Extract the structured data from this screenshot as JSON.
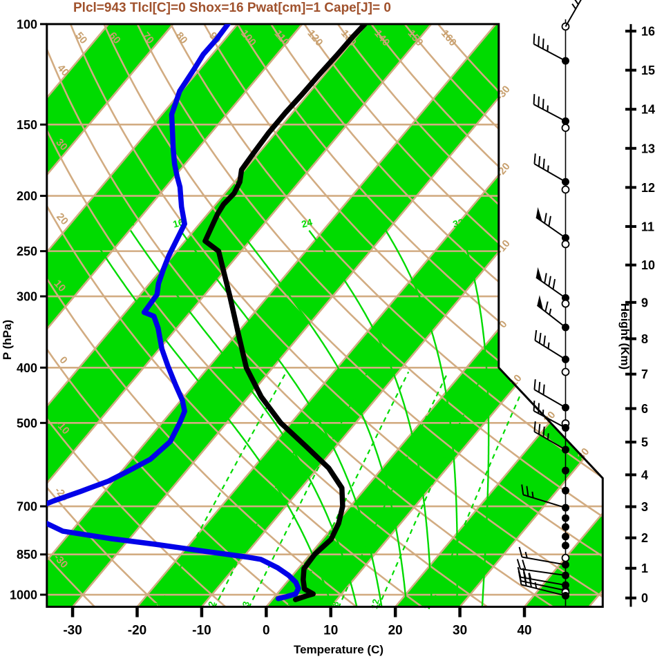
{
  "title": {
    "text": "Plcl=943 Tlcl[C]=0 Shox=16 Pwat[cm]=1 Cape[J]= 0"
  },
  "colors": {
    "title": "#A0522D",
    "tan_line": "#D2AC82",
    "tan_label": "#C8A06E",
    "green": "#00DB00",
    "temperature_curve": "#000000",
    "dewpoint_curve": "#0202E8",
    "axis": "#000000"
  },
  "axes": {
    "pressure": {
      "label": "P (hPa)",
      "ticks": [
        100,
        150,
        200,
        250,
        300,
        400,
        500,
        700,
        850,
        1000
      ]
    },
    "temperature": {
      "label": "Temperature (C)",
      "ticks": [
        -30,
        -20,
        -10,
        0,
        10,
        20,
        30,
        40
      ]
    },
    "height": {
      "label": "Height (Km)",
      "ticks": [
        0,
        1,
        2,
        3,
        4,
        5,
        6,
        7,
        8,
        9,
        10,
        11,
        12,
        13,
        14,
        15,
        16
      ]
    }
  },
  "background": {
    "isobar_lines": [
      150,
      200,
      250,
      300,
      400,
      500,
      700,
      850,
      1000
    ],
    "isotherms": {
      "min": -130,
      "max": 50,
      "step": 10,
      "right_edge_labels": [
        -30,
        -20,
        -10,
        0
      ],
      "notch_labels": [
        10,
        20,
        30
      ]
    },
    "dry_adiabats": {
      "min": -30,
      "max": 160,
      "step": 10,
      "top_labels": [
        50,
        60,
        70,
        80,
        90,
        100,
        110,
        120,
        130,
        140,
        150,
        160
      ],
      "left_labels": [
        -30,
        -20,
        -10,
        0,
        10,
        20,
        30,
        40
      ]
    },
    "moist_adiabats": {
      "values": [
        8,
        12,
        16,
        20,
        24,
        28,
        32
      ],
      "labeled": [
        12,
        16,
        24,
        32
      ],
      "label_pressure": 230
    },
    "mixing_ratio_g_kg": {
      "values": [
        1,
        2,
        3,
        5,
        8,
        12,
        20
      ],
      "label_pressure": 1041,
      "top_pressure": 400
    }
  },
  "chart_data": {
    "type": "skewt_log_p_sounding",
    "title": "Plcl=943 Tlcl[C]=0 Shox=16 Pwat[cm]=1 Cape[J]= 0",
    "parameters": {
      "Plcl": 943,
      "Tlcl_C": 0,
      "Shox": 16,
      "Pwat_cm": 1,
      "Cape_J": 0
    },
    "xlabel": "Temperature (C)",
    "ylabel": "P (hPa)",
    "y2label": "Height (Km)",
    "pressure_axis_hPa": [
      100,
      1050
    ],
    "temp_axis_C": [
      -35,
      45
    ],
    "temperature_profile_p_T": [
      [
        1020,
        3.6
      ],
      [
        1005,
        4.8
      ],
      [
        997,
        5.6
      ],
      [
        977,
        3.6
      ],
      [
        941,
        2.2
      ],
      [
        900,
        0.9
      ],
      [
        850,
        0.7
      ],
      [
        800,
        1.3
      ],
      [
        750,
        0.4
      ],
      [
        700,
        -1.2
      ],
      [
        650,
        -3.7
      ],
      [
        600,
        -8.3
      ],
      [
        550,
        -14.6
      ],
      [
        500,
        -21.6
      ],
      [
        450,
        -28.0
      ],
      [
        400,
        -34.1
      ],
      [
        350,
        -39.6
      ],
      [
        300,
        -45.9
      ],
      [
        250,
        -53.5
      ],
      [
        240,
        -56.9
      ],
      [
        215,
        -58.5
      ],
      [
        207,
        -58.8
      ],
      [
        198,
        -58.6
      ],
      [
        189,
        -59.2
      ],
      [
        180,
        -60.5
      ],
      [
        168,
        -60.8
      ],
      [
        155,
        -61.1
      ],
      [
        143,
        -61.1
      ],
      [
        133,
        -60.9
      ],
      [
        123,
        -60.8
      ],
      [
        113,
        -60.6
      ],
      [
        105,
        -60.5
      ],
      [
        100,
        -60.3
      ]
    ],
    "dewpoint_profile_p_T": [
      [
        1016,
        0.8
      ],
      [
        1008,
        1.8
      ],
      [
        997,
        2.9
      ],
      [
        975,
        2.6
      ],
      [
        951,
        1.4
      ],
      [
        925,
        -0.6
      ],
      [
        897,
        -3.3
      ],
      [
        867,
        -7.0
      ],
      [
        860,
        -9.1
      ],
      [
        838,
        -17.2
      ],
      [
        816,
        -25.2
      ],
      [
        797,
        -33.1
      ],
      [
        774,
        -41.3
      ],
      [
        749,
        -45.0
      ],
      [
        725,
        -50.5
      ],
      [
        694,
        -47.5
      ],
      [
        685,
        -46.7
      ],
      [
        659,
        -43.7
      ],
      [
        632,
        -40.7
      ],
      [
        606,
        -38.9
      ],
      [
        579,
        -37.1
      ],
      [
        539,
        -36.3
      ],
      [
        498,
        -37.3
      ],
      [
        477,
        -38.0
      ],
      [
        456,
        -39.8
      ],
      [
        430,
        -42.7
      ],
      [
        397,
        -46.5
      ],
      [
        371,
        -49.6
      ],
      [
        341,
        -52.9
      ],
      [
        325,
        -55.1
      ],
      [
        320,
        -57.1
      ],
      [
        298,
        -57.4
      ],
      [
        285,
        -58.6
      ],
      [
        269,
        -59.7
      ],
      [
        255,
        -60.6
      ],
      [
        224,
        -62.3
      ],
      [
        209,
        -65.0
      ],
      [
        193,
        -67.8
      ],
      [
        185,
        -69.6
      ],
      [
        176,
        -71.6
      ],
      [
        165,
        -73.9
      ],
      [
        155,
        -76.0
      ],
      [
        144,
        -78.5
      ],
      [
        131,
        -80.3
      ],
      [
        127,
        -80.5
      ],
      [
        120,
        -80.9
      ],
      [
        113,
        -81.4
      ],
      [
        106,
        -81.3
      ],
      [
        100,
        -81.5
      ]
    ],
    "wind_barbs": [
      {
        "p": 101,
        "marker": "circle",
        "angle": 60,
        "full": 3,
        "half": 1
      },
      {
        "p": 116,
        "marker": "dot",
        "angle": 152,
        "full": 3,
        "half": 1
      },
      {
        "p": 148,
        "marker": "dot",
        "angle": 152,
        "full": 3,
        "half": 1
      },
      {
        "p": 152,
        "marker": "circle"
      },
      {
        "p": 189,
        "marker": "dot",
        "angle": 150,
        "full": 3,
        "half": 1
      },
      {
        "p": 195,
        "marker": "circle"
      },
      {
        "p": 237,
        "marker": "dot",
        "angle": 145,
        "pennant": 1,
        "full": 2
      },
      {
        "p": 243,
        "marker": "circle"
      },
      {
        "p": 302,
        "marker": "dot",
        "angle": 145,
        "pennant": 1,
        "full": 3
      },
      {
        "p": 309,
        "marker": "circle"
      },
      {
        "p": 340,
        "marker": "dot",
        "angle": 142,
        "pennant": 1,
        "full": 1,
        "half": 1
      },
      {
        "p": 387,
        "marker": "dot",
        "angle": 148,
        "full": 3,
        "half": 1
      },
      {
        "p": 407,
        "marker": "circle"
      },
      {
        "p": 470,
        "marker": "dot",
        "angle": 150,
        "full": 3
      },
      {
        "p": 501,
        "marker": "circle"
      },
      {
        "p": 510,
        "marker": "dot",
        "angle": 152,
        "full": 2,
        "half": 1
      },
      {
        "p": 557,
        "marker": "dot",
        "angle": 150,
        "full": 3,
        "half": 1
      },
      {
        "p": 606,
        "marker": "dot"
      },
      {
        "p": 657,
        "marker": "dot"
      },
      {
        "p": 704,
        "marker": "dot",
        "angle": 163,
        "full": 2,
        "half": 1,
        "len": 64
      },
      {
        "p": 734,
        "marker": "dot"
      },
      {
        "p": 761,
        "marker": "dot"
      },
      {
        "p": 791,
        "marker": "dot"
      },
      {
        "p": 820,
        "marker": "dot"
      },
      {
        "p": 862,
        "marker": "circle"
      },
      {
        "p": 886,
        "marker": "dot",
        "angle": 170,
        "full": 1,
        "half": 1,
        "len": 64
      },
      {
        "p": 925,
        "marker": "dot",
        "angle": 172,
        "full": 2,
        "len": 66
      },
      {
        "p": 962,
        "marker": "dot",
        "angle": 170,
        "full": 2,
        "half": 1,
        "len": 66
      },
      {
        "p": 983,
        "marker": "dot",
        "angle": 168,
        "full": 3,
        "len": 66
      },
      {
        "p": 990,
        "marker": "circle"
      },
      {
        "p": 1004,
        "marker": "dot",
        "angle": 166,
        "full": 3,
        "half": 1,
        "len": 66
      }
    ]
  }
}
